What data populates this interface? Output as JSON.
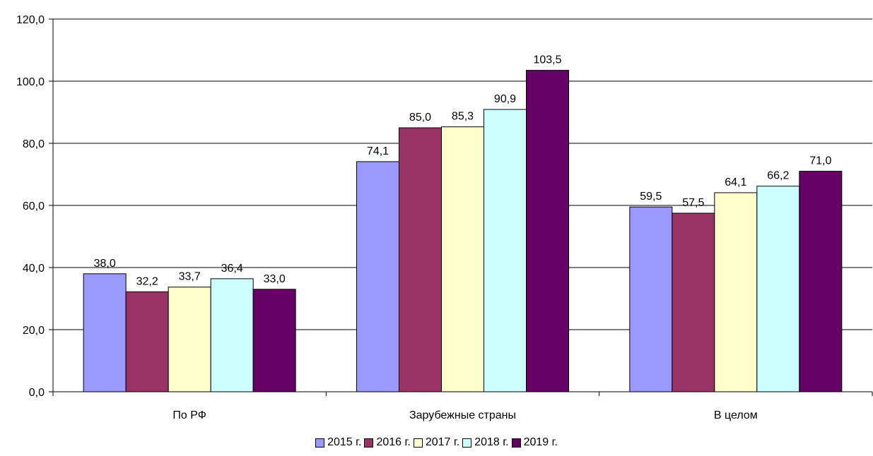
{
  "chart_data": {
    "type": "bar",
    "categories": [
      "По РФ",
      "Зарубежные страны",
      "В целом"
    ],
    "series": [
      {
        "name": "2015 г.",
        "color": "#9999FF",
        "values": [
          38.0,
          74.1,
          59.5
        ],
        "labels": [
          "38,0",
          "74,1",
          "59,5"
        ]
      },
      {
        "name": "2016 г.",
        "color": "#993366",
        "values": [
          32.2,
          85.0,
          57.5
        ],
        "labels": [
          "32,2",
          "85,0",
          "57,5"
        ]
      },
      {
        "name": "2017 г.",
        "color": "#FFFFCC",
        "values": [
          33.7,
          85.3,
          64.1
        ],
        "labels": [
          "33,7",
          "85,3",
          "64,1"
        ]
      },
      {
        "name": "2018 г.",
        "color": "#CCFFFF",
        "values": [
          36.4,
          90.9,
          66.2
        ],
        "labels": [
          "36,4",
          "90,9",
          "66,2"
        ]
      },
      {
        "name": "2019 г.",
        "color": "#660066",
        "values": [
          33.0,
          103.5,
          71.0
        ],
        "labels": [
          "33,0",
          "103,5",
          "71,0"
        ]
      }
    ],
    "yticks": [
      "0,0",
      "20,0",
      "40,0",
      "60,0",
      "80,0",
      "100,0",
      "120,0"
    ],
    "ylim": [
      0,
      120
    ],
    "ystep": 20,
    "grid": true,
    "legend_position": "bottom",
    "title": "",
    "xlabel": "",
    "ylabel": ""
  }
}
